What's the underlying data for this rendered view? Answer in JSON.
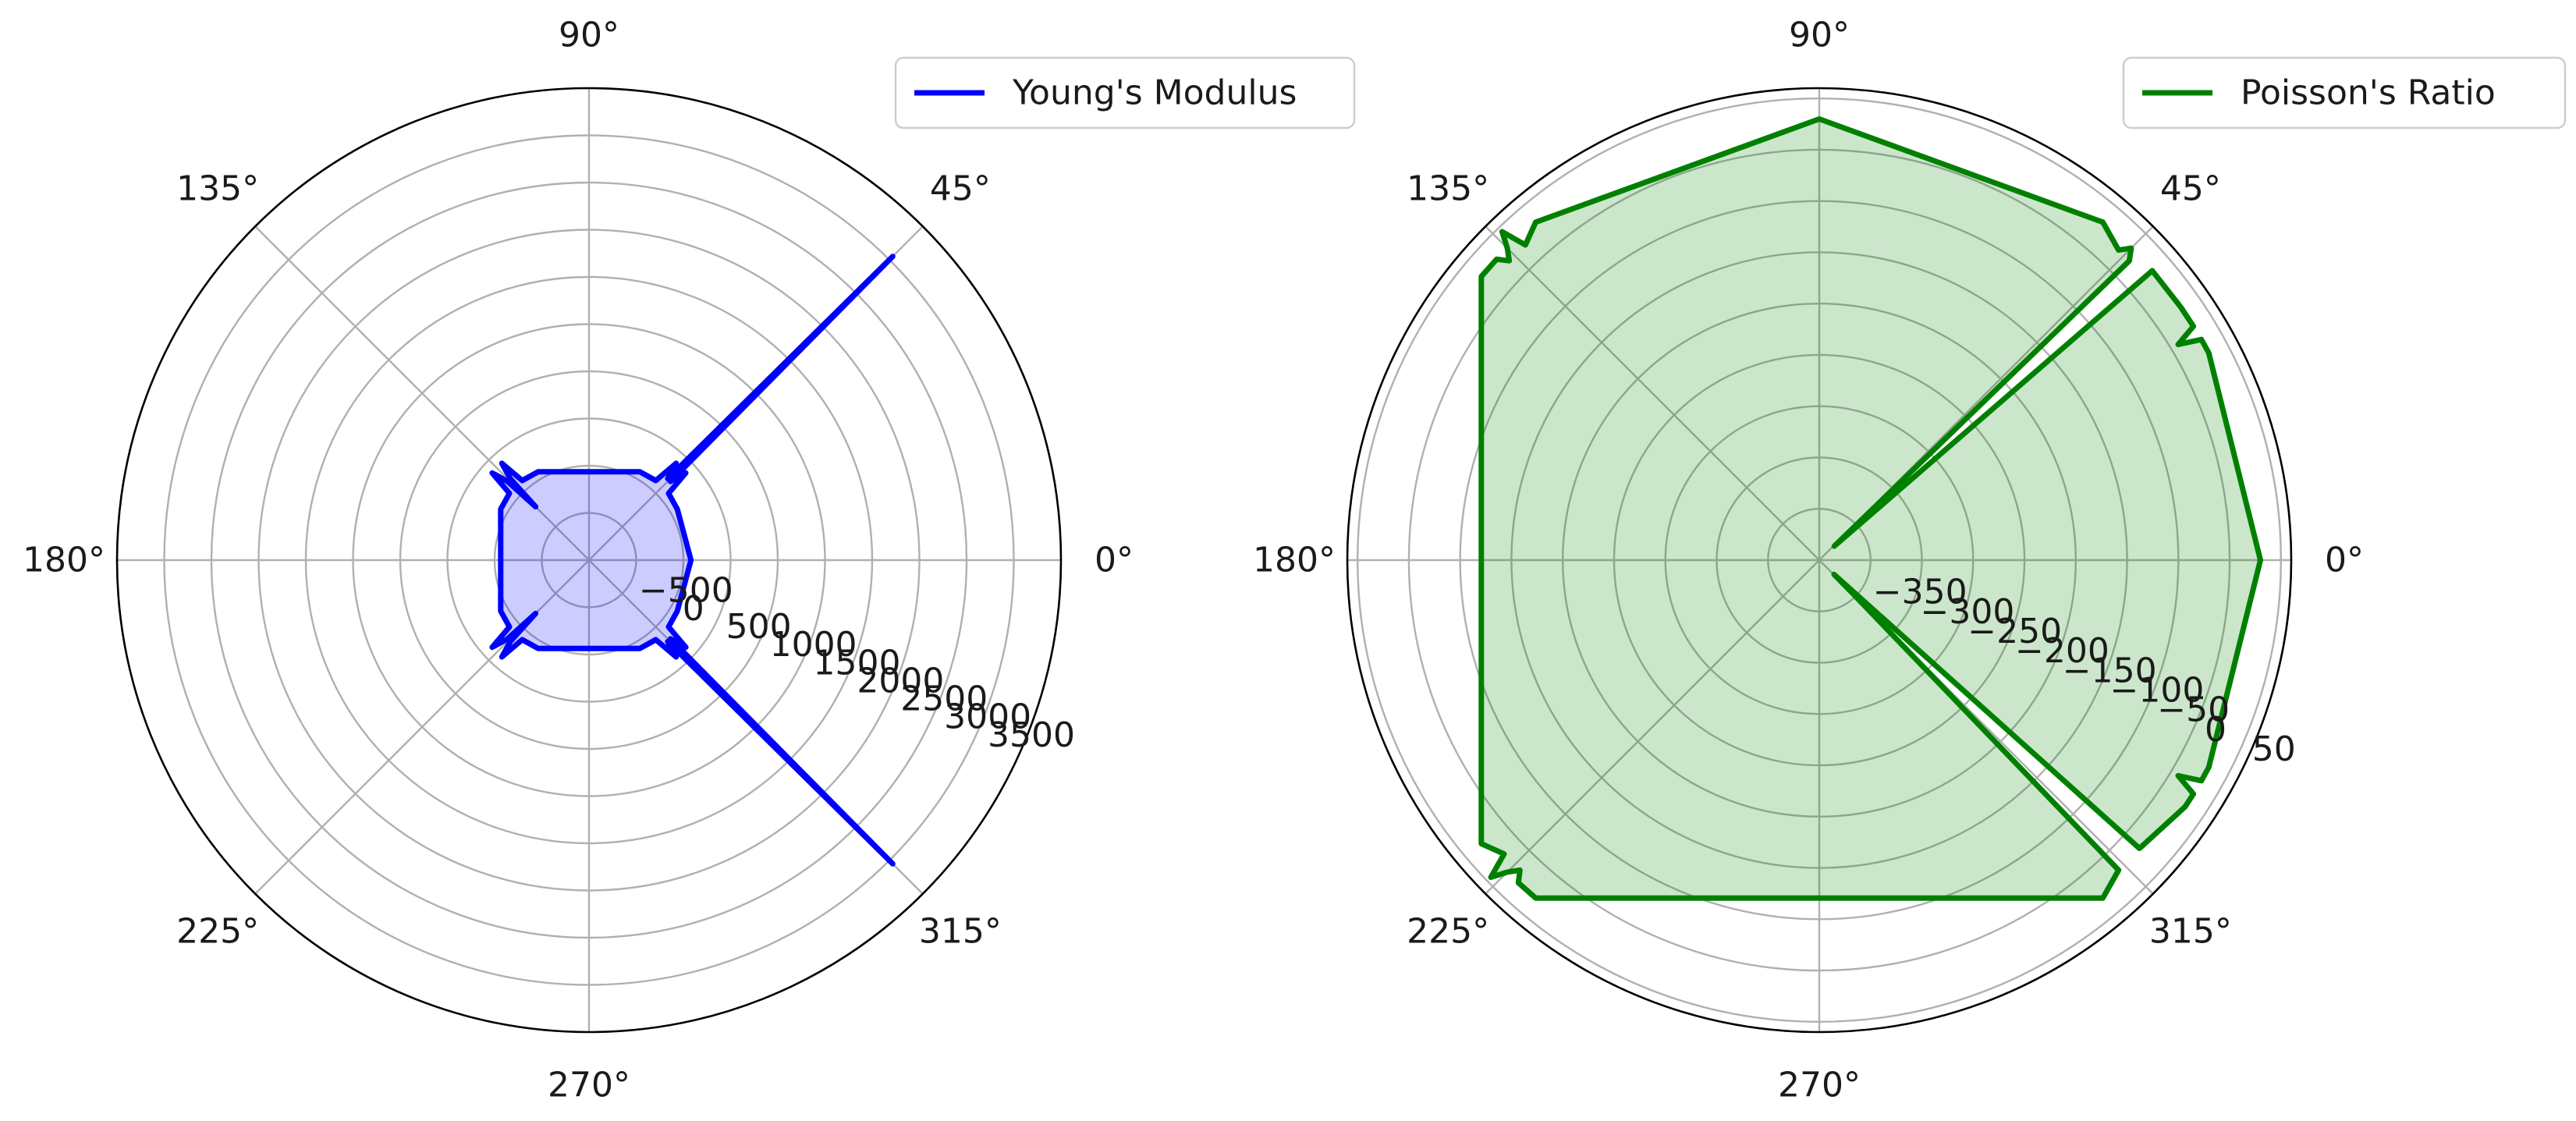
{
  "chart_data": [
    {
      "type": "polar",
      "series": [
        {
          "name": "Young's Modulus",
          "color": "#0000ff",
          "fill": "#0000ff",
          "fill_alpha": 0.2,
          "theta_deg": [
            0,
            30,
            40,
            42,
            44,
            45,
            46,
            48,
            50,
            60,
            120,
            130,
            132,
            134,
            135,
            136,
            138,
            140,
            150,
            210,
            220,
            222,
            224,
            225,
            226,
            228,
            230,
            240,
            300,
            310,
            312,
            314,
            315,
            316,
            318,
            320,
            330,
            360
          ],
          "r": [
            80,
            80,
            100,
            380,
            200,
            3550,
            200,
            380,
            100,
            80,
            80,
            100,
            380,
            200,
            -200,
            200,
            380,
            100,
            80,
            80,
            100,
            380,
            200,
            -200,
            200,
            380,
            100,
            80,
            80,
            100,
            380,
            200,
            3550,
            200,
            380,
            100,
            80,
            80
          ]
        }
      ],
      "radial_ticks": [
        "−500",
        "0",
        "500",
        "1000",
        "1500",
        "2000",
        "2500",
        "3000",
        "3500"
      ],
      "radial_tick_values": [
        -500,
        0,
        500,
        1000,
        1500,
        2000,
        2500,
        3000,
        3500
      ],
      "rlim": [
        -1000,
        4000
      ],
      "angle_ticks": [
        "0°",
        "45°",
        "90°",
        "135°",
        "180°",
        "225°",
        "270°",
        "315°"
      ],
      "angle_tick_values": [
        0,
        45,
        90,
        135,
        180,
        225,
        270,
        315
      ],
      "grid": true,
      "legend": "top-right"
    },
    {
      "type": "polar",
      "series": [
        {
          "name": "Poisson's Ratio",
          "color": "#008000",
          "fill": "#008000",
          "fill_alpha": 0.2,
          "theta_deg": [
            0,
            28,
            30,
            31,
            32,
            35,
            41,
            43,
            44,
            45,
            46,
            50,
            90,
            130,
            133,
            134,
            135,
            136,
            137,
            140,
            220,
            223,
            224,
            225,
            226,
            227,
            230,
            310,
            314,
            315,
            316,
            318,
            326,
            328,
            329,
            330,
            332,
            360
          ],
          "r": [
            30,
            30,
            30,
            8,
            30,
            30,
            30,
            -380,
            20,
            30,
            20,
            30,
            30,
            30,
            20,
            45,
            30,
            20,
            30,
            30,
            30,
            20,
            45,
            30,
            20,
            30,
            30,
            30,
            20,
            -350,
            -380,
            20,
            30,
            30,
            8,
            30,
            30,
            30
          ]
        }
      ],
      "radial_ticks": [
        "−350",
        "−300",
        "−250",
        "−200",
        "−150",
        "−100",
        "−50",
        "0",
        "50"
      ],
      "radial_tick_values": [
        -350,
        -300,
        -250,
        -200,
        -150,
        -100,
        -50,
        0,
        50
      ],
      "rlim": [
        -400,
        60
      ],
      "angle_ticks": [
        "0°",
        "45°",
        "90°",
        "135°",
        "180°",
        "225°",
        "270°",
        "315°"
      ],
      "angle_tick_values": [
        0,
        45,
        90,
        135,
        180,
        225,
        270,
        315
      ],
      "grid": true,
      "legend": "top-right"
    }
  ]
}
